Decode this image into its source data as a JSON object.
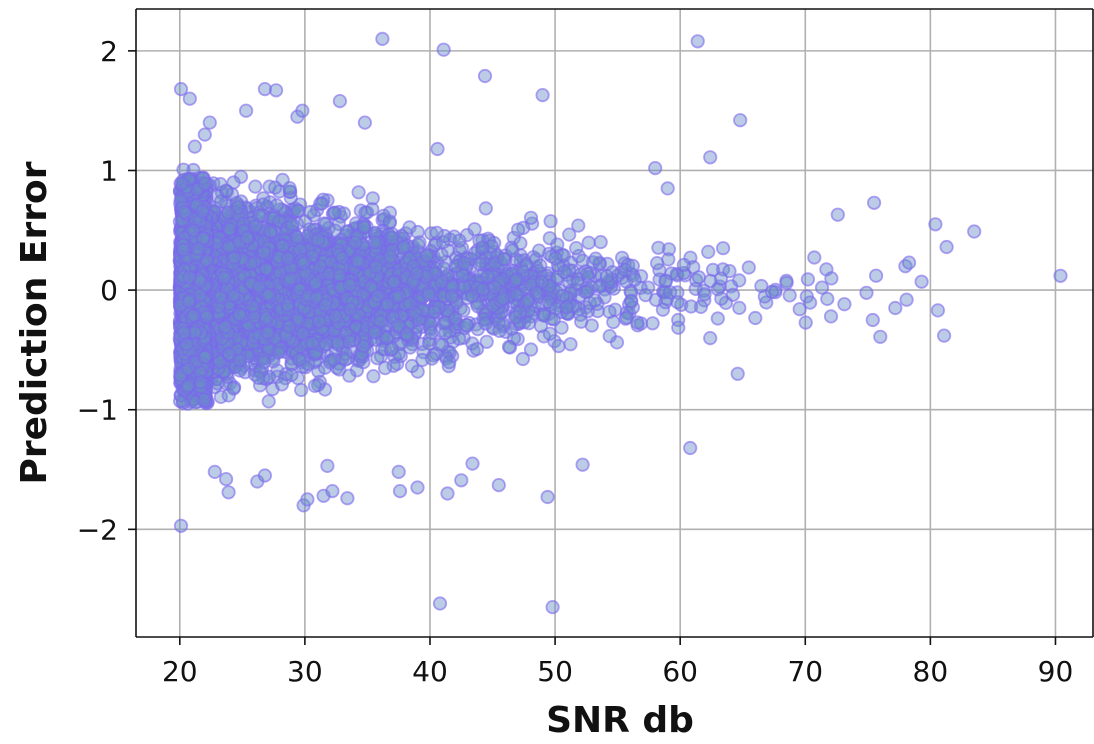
{
  "chart_data": {
    "type": "scatter",
    "title": "",
    "xlabel": "SNR db",
    "ylabel": "Prediction Error",
    "xlim": [
      16.5,
      93
    ],
    "ylim": [
      -2.9,
      2.35
    ],
    "xticks": [
      20,
      30,
      40,
      50,
      60,
      70,
      80,
      90
    ],
    "yticks": [
      -2,
      -1,
      0,
      1,
      2
    ],
    "xtick_labels": [
      "20",
      "30",
      "40",
      "50",
      "60",
      "70",
      "80",
      "90"
    ],
    "ytick_labels": [
      "−2",
      "−1",
      "0",
      "1",
      "2"
    ],
    "grid": true,
    "legend": "none",
    "marker_color": "#6a5acd",
    "marker_edge_color": "#7b68ee",
    "marker_face_color": "#6b8fc7",
    "density_summary": "very dense cloud: x from 20 to ~75 with spread narrowing as x increases",
    "outliers": [
      {
        "x": 20.1,
        "y": 1.68
      },
      {
        "x": 20.1,
        "y": -1.97
      },
      {
        "x": 20.8,
        "y": 1.6
      },
      {
        "x": 21.2,
        "y": 1.2
      },
      {
        "x": 22.0,
        "y": 1.3
      },
      {
        "x": 22.4,
        "y": 1.4
      },
      {
        "x": 22.8,
        "y": -1.52
      },
      {
        "x": 23.7,
        "y": -1.58
      },
      {
        "x": 23.9,
        "y": -1.69
      },
      {
        "x": 25.3,
        "y": 1.5
      },
      {
        "x": 26.8,
        "y": 1.68
      },
      {
        "x": 27.7,
        "y": 1.67
      },
      {
        "x": 26.2,
        "y": -1.6
      },
      {
        "x": 26.8,
        "y": -1.55
      },
      {
        "x": 29.4,
        "y": 1.45
      },
      {
        "x": 29.8,
        "y": 1.5
      },
      {
        "x": 29.9,
        "y": -1.8
      },
      {
        "x": 30.2,
        "y": -1.75
      },
      {
        "x": 31.5,
        "y": -1.72
      },
      {
        "x": 31.8,
        "y": -1.47
      },
      {
        "x": 32.2,
        "y": -1.68
      },
      {
        "x": 32.8,
        "y": 1.58
      },
      {
        "x": 33.4,
        "y": -1.74
      },
      {
        "x": 34.8,
        "y": 1.4
      },
      {
        "x": 36.2,
        "y": 2.1
      },
      {
        "x": 37.6,
        "y": -1.68
      },
      {
        "x": 37.5,
        "y": -1.52
      },
      {
        "x": 39.0,
        "y": -1.65
      },
      {
        "x": 40.6,
        "y": 1.18
      },
      {
        "x": 41.1,
        "y": 2.01
      },
      {
        "x": 40.8,
        "y": -2.62
      },
      {
        "x": 41.4,
        "y": -1.7
      },
      {
        "x": 42.5,
        "y": -1.59
      },
      {
        "x": 43.4,
        "y": -1.45
      },
      {
        "x": 44.4,
        "y": 1.79
      },
      {
        "x": 45.5,
        "y": -1.63
      },
      {
        "x": 49.0,
        "y": 1.63
      },
      {
        "x": 49.4,
        "y": -1.73
      },
      {
        "x": 49.8,
        "y": -2.65
      },
      {
        "x": 52.2,
        "y": -1.46
      },
      {
        "x": 58.0,
        "y": 1.02
      },
      {
        "x": 59.0,
        "y": 0.85
      },
      {
        "x": 60.8,
        "y": -1.32
      },
      {
        "x": 61.4,
        "y": 2.08
      },
      {
        "x": 62.4,
        "y": 1.11
      },
      {
        "x": 64.8,
        "y": 1.42
      },
      {
        "x": 64.6,
        "y": -0.7
      },
      {
        "x": 72.6,
        "y": 0.63
      },
      {
        "x": 75.5,
        "y": 0.73
      },
      {
        "x": 75.4,
        "y": -0.25
      },
      {
        "x": 76.0,
        "y": -0.39
      },
      {
        "x": 77.2,
        "y": -0.15
      },
      {
        "x": 78.0,
        "y": 0.2
      },
      {
        "x": 78.3,
        "y": 0.23
      },
      {
        "x": 78.1,
        "y": -0.08
      },
      {
        "x": 79.3,
        "y": 0.07
      },
      {
        "x": 80.4,
        "y": 0.55
      },
      {
        "x": 80.6,
        "y": -0.17
      },
      {
        "x": 81.3,
        "y": 0.36
      },
      {
        "x": 81.1,
        "y": -0.38
      },
      {
        "x": 83.5,
        "y": 0.49
      },
      {
        "x": 90.4,
        "y": 0.12
      }
    ]
  }
}
